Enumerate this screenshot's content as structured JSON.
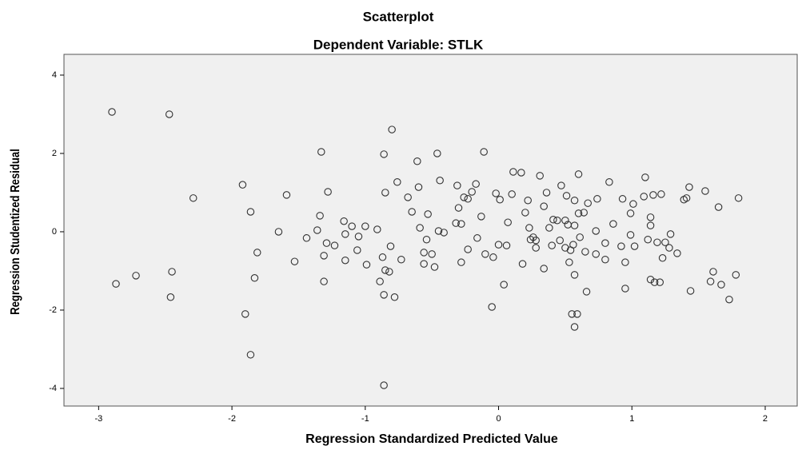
{
  "chart_data": {
    "type": "scatter",
    "title": "Scatterplot",
    "subtitle": "Dependent Variable: STLK",
    "x_label": "Regression Standardized Predicted Value",
    "y_label": "Regression Studentized Residual",
    "xlim": [
      -3.26,
      2.24
    ],
    "ylim": [
      -4.45,
      4.53
    ],
    "xticks": [
      -3,
      -2,
      -1,
      0,
      1,
      2
    ],
    "yticks": [
      -4,
      -2,
      0,
      2,
      4
    ],
    "marker_color": "#333333",
    "background": "#f0f0f0",
    "x": [
      -2.9,
      -2.47,
      -2.29,
      -2.87,
      -2.72,
      -2.45,
      -2.46,
      -1.92,
      -1.86,
      -1.9,
      -1.86,
      -1.83,
      -1.81,
      -1.65,
      -1.59,
      -1.53,
      -1.44,
      -1.33,
      -1.34,
      -1.28,
      -1.36,
      -1.31,
      -1.31,
      -1.29,
      -1.23,
      -1.16,
      -1.15,
      -1.15,
      -1.1,
      -1.05,
      -1.06,
      -1.0,
      -0.99,
      -0.91,
      -0.89,
      -0.86,
      -0.85,
      -0.87,
      -0.85,
      -0.86,
      -0.82,
      -0.8,
      -0.81,
      -0.78,
      -0.86,
      -0.76,
      -0.73,
      -0.68,
      -0.65,
      -0.6,
      -0.61,
      -0.59,
      -0.56,
      -0.56,
      -0.53,
      -0.54,
      -0.5,
      -0.48,
      -0.46,
      -0.44,
      -0.45,
      -0.41,
      -0.32,
      -0.31,
      -0.3,
      -0.28,
      -0.28,
      -0.26,
      -0.23,
      -0.23,
      -0.2,
      -0.17,
      -0.16,
      -0.13,
      -0.11,
      -0.1,
      -0.05,
      -0.04,
      -0.02,
      0.01,
      0.0,
      0.04,
      0.06,
      0.07,
      0.11,
      0.1,
      0.17,
      0.18,
      0.2,
      0.22,
      0.23,
      0.24,
      0.26,
      0.28,
      0.28,
      0.31,
      0.34,
      0.34,
      0.36,
      0.38,
      0.4,
      0.41,
      0.44,
      0.46,
      0.47,
      0.5,
      0.5,
      0.51,
      0.52,
      0.53,
      0.54,
      0.55,
      0.56,
      0.57,
      0.57,
      0.57,
      0.59,
      0.57,
      0.6,
      0.6,
      0.61,
      0.64,
      0.65,
      0.67,
      0.66,
      0.73,
      0.73,
      0.74,
      0.8,
      0.8,
      0.83,
      0.86,
      0.92,
      0.93,
      0.95,
      0.95,
      0.99,
      1.01,
      0.99,
      1.02,
      1.09,
      1.1,
      1.12,
      1.14,
      1.14,
      1.14,
      1.16,
      1.17,
      1.19,
      1.21,
      1.22,
      1.23,
      1.25,
      1.28,
      1.29,
      1.34,
      1.39,
      1.41,
      1.43,
      1.44,
      1.55,
      1.59,
      1.61,
      1.65,
      1.67,
      1.73,
      1.78,
      1.8
    ],
    "y": [
      3.06,
      3.0,
      0.86,
      -1.33,
      -1.12,
      -1.02,
      -1.67,
      1.2,
      0.51,
      -2.1,
      -3.14,
      -1.18,
      -0.53,
      0.0,
      0.94,
      -0.76,
      -0.16,
      2.04,
      0.41,
      1.02,
      0.04,
      -0.61,
      -1.27,
      -0.29,
      -0.35,
      0.27,
      -0.73,
      -0.06,
      0.14,
      -0.12,
      -0.47,
      0.14,
      -0.84,
      0.06,
      -1.27,
      1.98,
      1.0,
      -0.65,
      -0.98,
      -1.61,
      -1.02,
      2.61,
      -0.37,
      -1.67,
      -3.92,
      1.27,
      -0.71,
      0.88,
      0.51,
      1.14,
      1.8,
      0.1,
      -0.53,
      -0.82,
      0.45,
      -0.2,
      -0.57,
      -0.9,
      2.0,
      1.31,
      0.02,
      -0.02,
      0.22,
      1.18,
      0.61,
      0.2,
      -0.78,
      0.88,
      0.84,
      -0.45,
      1.02,
      1.22,
      -0.16,
      0.39,
      2.04,
      -0.57,
      -1.92,
      -0.65,
      0.98,
      0.82,
      -0.33,
      -1.35,
      -0.35,
      0.24,
      1.53,
      0.96,
      1.51,
      -0.82,
      0.49,
      0.8,
      0.1,
      -0.2,
      -0.14,
      -0.41,
      -0.22,
      1.43,
      0.65,
      -0.94,
      1.0,
      0.1,
      -0.35,
      0.31,
      0.29,
      -0.22,
      1.18,
      0.29,
      -0.41,
      0.92,
      0.18,
      -0.78,
      -0.47,
      -2.1,
      -0.33,
      -1.1,
      0.8,
      0.16,
      -2.1,
      -2.43,
      1.47,
      0.47,
      -0.14,
      0.49,
      -0.51,
      0.73,
      -1.53,
      0.02,
      -0.57,
      0.84,
      -0.29,
      -0.71,
      1.27,
      0.2,
      -0.37,
      0.84,
      -0.78,
      -1.45,
      -0.08,
      0.71,
      0.47,
      -0.37,
      0.9,
      1.39,
      -0.2,
      0.37,
      0.16,
      -1.22,
      0.94,
      -1.29,
      -0.27,
      -1.29,
      0.96,
      -0.67,
      -0.27,
      -0.41,
      -0.06,
      -0.55,
      0.82,
      0.86,
      1.14,
      -1.51,
      1.04,
      -1.27,
      -1.02,
      0.63,
      -1.35,
      -1.73,
      -1.1,
      0.86
    ]
  }
}
